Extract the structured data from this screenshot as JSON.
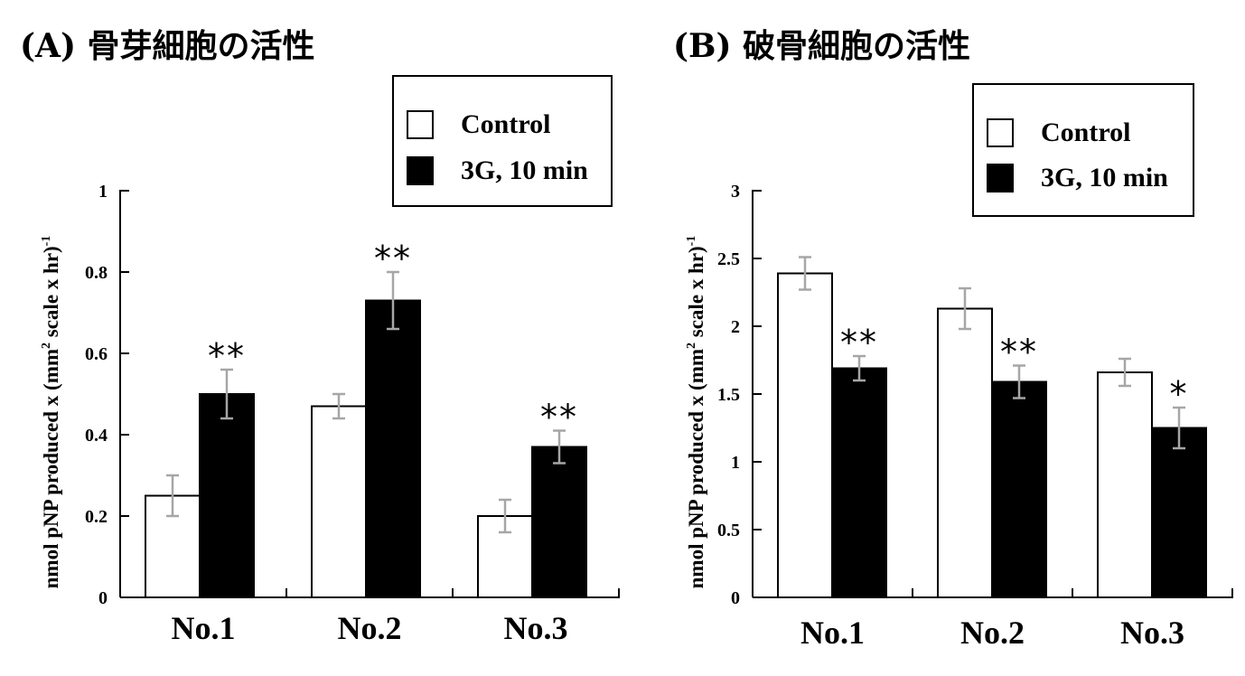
{
  "colors": {
    "control": "#ffffff",
    "treated": "#000000",
    "error_bar": "#a6a6a6",
    "axis": "#000000"
  },
  "legend": {
    "control_label": "Control",
    "treated_label": "3G, 10 min"
  },
  "chart_data": [
    {
      "type": "bar",
      "title": "(A) 骨芽細胞の活性",
      "ylabel_main": "nmol pNP produced x (mm",
      "ylabel_sup1": "2",
      "ylabel_mid": " scale x hr)",
      "ylabel_sup2": "-1",
      "xlabel": "",
      "ylim": [
        0,
        1
      ],
      "yticks": [
        0,
        0.2,
        0.4,
        0.6,
        0.8,
        1
      ],
      "ytick_labels": [
        "0",
        "0.2",
        "0.4",
        "0.6",
        "0.8",
        "1"
      ],
      "categories": [
        "No.1",
        "No.2",
        "No.3"
      ],
      "series": [
        {
          "name": "Control",
          "values": [
            0.25,
            0.47,
            0.2
          ],
          "errors": [
            0.05,
            0.03,
            0.04
          ],
          "sig": [
            "",
            "",
            ""
          ]
        },
        {
          "name": "3G, 10 min",
          "values": [
            0.5,
            0.73,
            0.37
          ],
          "errors": [
            0.06,
            0.07,
            0.04
          ],
          "sig": [
            "**",
            "**",
            "**"
          ]
        }
      ]
    },
    {
      "type": "bar",
      "title": "(B) 破骨細胞の活性",
      "ylabel_main": "nmol pNP produced x (mm",
      "ylabel_sup1": "2",
      "ylabel_mid": " scale x hr)",
      "ylabel_sup2": "-1",
      "xlabel": "",
      "ylim": [
        0,
        3
      ],
      "yticks": [
        0,
        0.5,
        1,
        1.5,
        2,
        2.5,
        3
      ],
      "ytick_labels": [
        "0",
        "0.5",
        "1",
        "1.5",
        "2",
        "2.5",
        "3"
      ],
      "categories": [
        "No.1",
        "No.2",
        "No.3"
      ],
      "series": [
        {
          "name": "Control",
          "values": [
            2.39,
            2.13,
            1.66
          ],
          "errors": [
            0.12,
            0.15,
            0.1
          ],
          "sig": [
            "",
            "",
            ""
          ]
        },
        {
          "name": "3G, 10 min",
          "values": [
            1.69,
            1.59,
            1.25
          ],
          "errors": [
            0.09,
            0.12,
            0.15
          ],
          "sig": [
            "**",
            "**",
            "*"
          ]
        }
      ]
    }
  ]
}
